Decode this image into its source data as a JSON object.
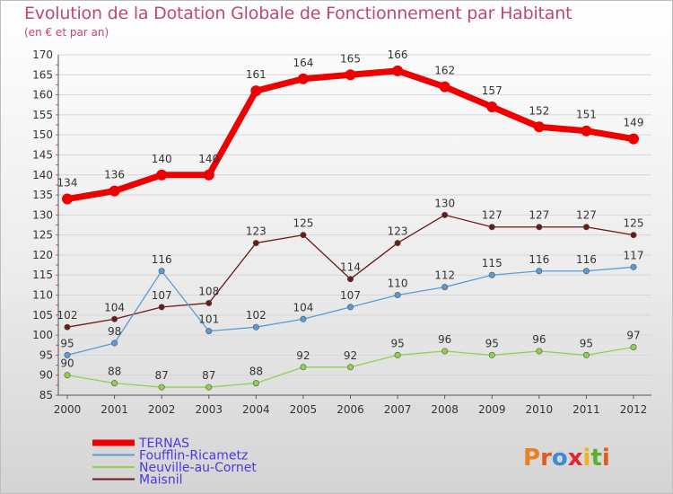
{
  "chart_data": {
    "type": "line",
    "title": "Evolution de la Dotation Globale de Fonctionnement par Habitant",
    "subtitle": "(en € et par an)",
    "xlabel": "",
    "ylabel": "",
    "categories": [
      "2000",
      "2001",
      "2002",
      "2003",
      "2004",
      "2005",
      "2006",
      "2007",
      "2008",
      "2009",
      "2010",
      "2011",
      "2012"
    ],
    "ylim": [
      85,
      170
    ],
    "yticks": [
      85,
      90,
      95,
      100,
      105,
      110,
      115,
      120,
      125,
      130,
      135,
      140,
      145,
      150,
      155,
      160,
      165,
      170
    ],
    "grid": "horizontal",
    "legend_position": "bottom-left",
    "series": [
      {
        "name": "TERNAS",
        "color": "#ee0000",
        "values": [
          134,
          136,
          140,
          140,
          161,
          164,
          165,
          166,
          162,
          157,
          152,
          151,
          149
        ]
      },
      {
        "name": "Foufflin-Ricametz",
        "color": "#5b9bd5",
        "values": [
          95,
          98,
          116,
          101,
          102,
          104,
          107,
          110,
          112,
          115,
          116,
          116,
          117
        ]
      },
      {
        "name": "Neuville-au-Cornet",
        "color": "#8fd14f",
        "values": [
          90,
          88,
          87,
          87,
          88,
          92,
          92,
          95,
          96,
          95,
          96,
          95,
          97
        ]
      },
      {
        "name": "Maisnil",
        "color": "#6b1a1a",
        "values": [
          102,
          104,
          107,
          108,
          123,
          125,
          114,
          123,
          130,
          127,
          127,
          127,
          125
        ]
      }
    ]
  },
  "brand": {
    "text": "Proxiti",
    "letter_colors": [
      "#e8821f",
      "#e25a1c",
      "#3a8ad8",
      "#e5262d",
      "#f2b21c",
      "#58b12f",
      "#e25a1c"
    ]
  }
}
